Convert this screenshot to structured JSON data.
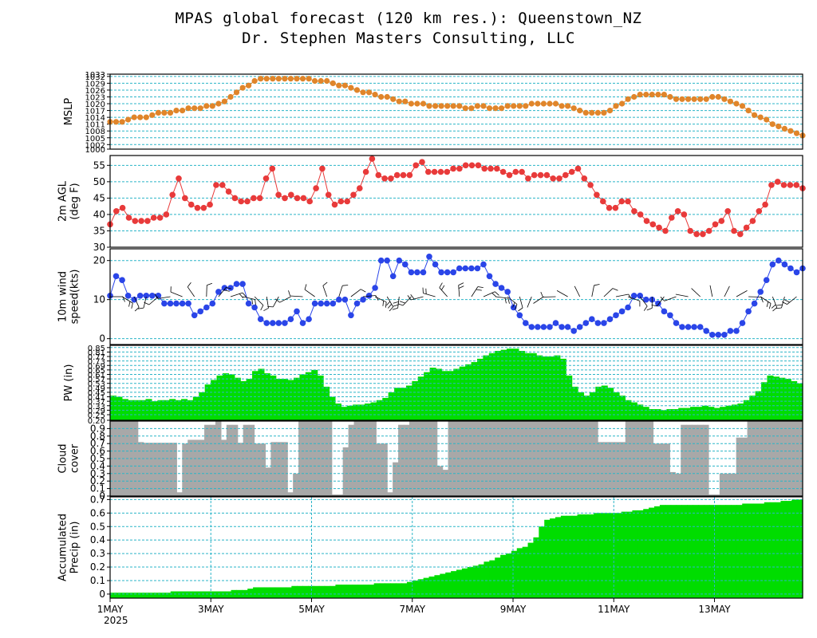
{
  "header": {
    "title": "MPAS global forecast (120 km res.): Queenstown_NZ",
    "subtitle": "Dr. Stephen Masters Consulting, LLC"
  },
  "x_axis": {
    "labels": [
      "1MAY",
      "3MAY",
      "5MAY",
      "7MAY",
      "9MAY",
      "11MAY",
      "13MAY"
    ],
    "year": "2025",
    "hours_total": 330
  },
  "colors": {
    "grid": "#2bb5c8",
    "mslp": "#e0852a",
    "temp": "#e83a3a",
    "wind": "#2a45e8",
    "pw": "#00dd00",
    "cloud": "#a8a8a8",
    "precip": "#00dd00"
  },
  "chart_data": [
    {
      "id": "mslp",
      "type": "line",
      "ylabel": [
        "MSLP"
      ],
      "ylim": [
        1000,
        1033
      ],
      "yticks": [
        "1000",
        "1002",
        "1005",
        "1008",
        "1011",
        "1014",
        "1017",
        "1020",
        "1023",
        "1026",
        "1029",
        "1032",
        "1033"
      ],
      "values": [
        1012,
        1012,
        1012,
        1013,
        1014,
        1014,
        1014,
        1015,
        1016,
        1016,
        1016,
        1017,
        1017,
        1018,
        1018,
        1018,
        1019,
        1019,
        1020,
        1021,
        1023,
        1025,
        1027,
        1028,
        1030,
        1031,
        1031,
        1031,
        1031,
        1031,
        1031,
        1031,
        1031,
        1031,
        1030,
        1030,
        1030,
        1029,
        1028,
        1028,
        1027,
        1026,
        1025,
        1025,
        1024,
        1023,
        1023,
        1022,
        1021,
        1021,
        1020,
        1020,
        1020,
        1019,
        1019,
        1019,
        1019,
        1019,
        1019,
        1018,
        1018,
        1019,
        1019,
        1018,
        1018,
        1018,
        1019,
        1019,
        1019,
        1019,
        1020,
        1020,
        1020,
        1020,
        1020,
        1019,
        1019,
        1018,
        1017,
        1016,
        1016,
        1016,
        1016,
        1017,
        1019,
        1020,
        1022,
        1023,
        1024,
        1024,
        1024,
        1024,
        1024,
        1023,
        1022,
        1022,
        1022,
        1022,
        1022,
        1022,
        1023,
        1023,
        1022,
        1021,
        1020,
        1019,
        1017,
        1015,
        1014,
        1013,
        1011,
        1010,
        1009,
        1008,
        1007,
        1006
      ]
    },
    {
      "id": "temp",
      "type": "line",
      "ylabel": [
        "2m AGL",
        "(deg F)"
      ],
      "ylim": [
        30,
        58
      ],
      "yticks": [
        "30",
        "35",
        "40",
        "45",
        "50",
        "55"
      ],
      "values": [
        37,
        41,
        42,
        39,
        38,
        38,
        38,
        39,
        39,
        40,
        46,
        51,
        45,
        43,
        42,
        42,
        43,
        49,
        49,
        47,
        45,
        44,
        44,
        45,
        45,
        51,
        54,
        46,
        45,
        46,
        45,
        45,
        44,
        48,
        54,
        46,
        43,
        44,
        44,
        46,
        48,
        53,
        57,
        52,
        51,
        51,
        52,
        52,
        52,
        55,
        56,
        53,
        53,
        53,
        53,
        54,
        54,
        55,
        55,
        55,
        54,
        54,
        54,
        53,
        52,
        53,
        53,
        51,
        52,
        52,
        52,
        51,
        51,
        52,
        53,
        54,
        51,
        49,
        46,
        44,
        42,
        42,
        44,
        44,
        41,
        40,
        38,
        37,
        36,
        35,
        39,
        41,
        40,
        35,
        34,
        34,
        35,
        37,
        38,
        41,
        35,
        34,
        36,
        38,
        41,
        43,
        49,
        50,
        49,
        49,
        49,
        48
      ]
    },
    {
      "id": "wind",
      "type": "line",
      "ylabel": [
        "10m wind",
        "speed(kts)"
      ],
      "ylim": [
        -1.5,
        23
      ],
      "yticks": [
        "0",
        "10",
        "20"
      ],
      "values": [
        11,
        16,
        15,
        11,
        10,
        11,
        11,
        11,
        11,
        9,
        9,
        9,
        9,
        9,
        6,
        7,
        8,
        9,
        12,
        13,
        13,
        14,
        14,
        9,
        8,
        5,
        4,
        4,
        4,
        4,
        5,
        7,
        4,
        5,
        9,
        9,
        9,
        9,
        10,
        10,
        6,
        9,
        10,
        11,
        13,
        20,
        20,
        16,
        20,
        19,
        17,
        17,
        17,
        21,
        19,
        17,
        17,
        17,
        18,
        18,
        18,
        18,
        19,
        16,
        14,
        13,
        12,
        8,
        6,
        4,
        3,
        3,
        3,
        3,
        4,
        3,
        3,
        2,
        3,
        4,
        5,
        4,
        4,
        5,
        6,
        7,
        8,
        11,
        11,
        10,
        10,
        9,
        7,
        6,
        4,
        3,
        3,
        3,
        3,
        2,
        1,
        1,
        1,
        2,
        2,
        4,
        7,
        9,
        12,
        15,
        19,
        20,
        19,
        18,
        17,
        18
      ]
    },
    {
      "id": "pw",
      "type": "area",
      "ylabel": [
        "PW (in)"
      ],
      "ylim": [
        0.2,
        0.87
      ],
      "yticks": [
        "0.20",
        "0.25",
        "0.29",
        "0.33",
        "0.37",
        "0.41",
        "0.45",
        "0.49",
        "0.53",
        "0.57",
        "0.61",
        "0.65",
        "0.69",
        "0.73",
        "0.77",
        "0.81",
        "0.85"
      ],
      "values": [
        0.42,
        0.41,
        0.39,
        0.38,
        0.38,
        0.38,
        0.39,
        0.37,
        0.38,
        0.38,
        0.39,
        0.38,
        0.39,
        0.38,
        0.41,
        0.45,
        0.52,
        0.56,
        0.6,
        0.62,
        0.61,
        0.58,
        0.55,
        0.57,
        0.64,
        0.66,
        0.62,
        0.6,
        0.57,
        0.57,
        0.56,
        0.58,
        0.61,
        0.63,
        0.65,
        0.6,
        0.5,
        0.41,
        0.35,
        0.32,
        0.33,
        0.34,
        0.34,
        0.35,
        0.36,
        0.38,
        0.4,
        0.45,
        0.49,
        0.49,
        0.51,
        0.55,
        0.59,
        0.63,
        0.67,
        0.66,
        0.64,
        0.64,
        0.66,
        0.68,
        0.7,
        0.72,
        0.75,
        0.78,
        0.8,
        0.82,
        0.83,
        0.84,
        0.84,
        0.82,
        0.8,
        0.8,
        0.78,
        0.77,
        0.77,
        0.78,
        0.75,
        0.6,
        0.5,
        0.45,
        0.42,
        0.45,
        0.5,
        0.51,
        0.49,
        0.45,
        0.42,
        0.38,
        0.36,
        0.34,
        0.32,
        0.3,
        0.3,
        0.29,
        0.3,
        0.3,
        0.31,
        0.31,
        0.32,
        0.32,
        0.33,
        0.32,
        0.31,
        0.32,
        0.33,
        0.34,
        0.35,
        0.38,
        0.42,
        0.46,
        0.54,
        0.6,
        0.59,
        0.58,
        0.57,
        0.55,
        0.53
      ]
    },
    {
      "id": "cloud",
      "type": "bar",
      "ylabel": [
        "Cloud",
        "cover"
      ],
      "ylim": [
        0,
        1
      ],
      "yticks": [
        "0",
        "0.1",
        "0.2",
        "0.3",
        "0.4",
        "0.5",
        "0.6",
        "0.7",
        "0.8",
        "0.9"
      ],
      "values": [
        1,
        1,
        1,
        1,
        1,
        0.72,
        0.71,
        0.71,
        0.71,
        0.71,
        0.71,
        0.71,
        0.05,
        0.7,
        0.75,
        0.75,
        0.75,
        0.95,
        0.95,
        1,
        0.75,
        0.95,
        0.95,
        0.71,
        0.95,
        0.95,
        0.7,
        0.7,
        0.38,
        0.72,
        0.72,
        0.72,
        0.05,
        0.3,
        1,
        1,
        1,
        1,
        1,
        1,
        0.02,
        0.02,
        0.65,
        0.95,
        1,
        1,
        1,
        1,
        0.7,
        0.7,
        0.05,
        0.45,
        0.95,
        0.95,
        1,
        1,
        1,
        1,
        1,
        0.4,
        0.35,
        1,
        1,
        1,
        1,
        1,
        1,
        1,
        1,
        1,
        1,
        1,
        1,
        1,
        1,
        1,
        1,
        1,
        1,
        1,
        1,
        1,
        1,
        1,
        1,
        1,
        1,
        1,
        0.72,
        0.72,
        0.72,
        0.72,
        0.72,
        1,
        1,
        1,
        1,
        1,
        0.7,
        0.7,
        0.7,
        0.32,
        0.3,
        0.95,
        0.95,
        0.95,
        0.95,
        0.95,
        0.02,
        0.02,
        0.3,
        0.3,
        0.3,
        0.78,
        0.78,
        1,
        1,
        1,
        1,
        1,
        1,
        1,
        1,
        1,
        1
      ]
    },
    {
      "id": "precip",
      "type": "area",
      "ylabel": [
        "Accumulated",
        "Precip (in)"
      ],
      "ylim": [
        -0.03,
        0.72
      ],
      "yticks": [
        "0",
        "0.1",
        "0.2",
        "0.3",
        "0.4",
        "0.5",
        "0.6",
        "0.7"
      ],
      "values": [
        0.01,
        0.01,
        0.01,
        0.01,
        0.01,
        0.01,
        0.01,
        0.01,
        0.01,
        0.01,
        0.01,
        0.02,
        0.02,
        0.02,
        0.02,
        0.02,
        0.02,
        0.02,
        0.02,
        0.02,
        0.02,
        0.02,
        0.03,
        0.03,
        0.03,
        0.04,
        0.05,
        0.05,
        0.05,
        0.05,
        0.05,
        0.05,
        0.05,
        0.06,
        0.06,
        0.06,
        0.06,
        0.06,
        0.06,
        0.06,
        0.06,
        0.07,
        0.07,
        0.07,
        0.07,
        0.07,
        0.07,
        0.07,
        0.08,
        0.08,
        0.08,
        0.08,
        0.08,
        0.08,
        0.09,
        0.1,
        0.11,
        0.12,
        0.13,
        0.14,
        0.15,
        0.16,
        0.17,
        0.18,
        0.19,
        0.2,
        0.21,
        0.22,
        0.24,
        0.25,
        0.27,
        0.29,
        0.3,
        0.32,
        0.34,
        0.35,
        0.38,
        0.42,
        0.5,
        0.55,
        0.56,
        0.57,
        0.58,
        0.58,
        0.58,
        0.59,
        0.59,
        0.59,
        0.6,
        0.6,
        0.6,
        0.6,
        0.6,
        0.61,
        0.61,
        0.62,
        0.62,
        0.63,
        0.64,
        0.65,
        0.66,
        0.66,
        0.66,
        0.66,
        0.66,
        0.66,
        0.66,
        0.66,
        0.66,
        0.66,
        0.66,
        0.66,
        0.66,
        0.66,
        0.66,
        0.67,
        0.67,
        0.67,
        0.67,
        0.68,
        0.68,
        0.68,
        0.69,
        0.69,
        0.7,
        0.7
      ]
    }
  ]
}
